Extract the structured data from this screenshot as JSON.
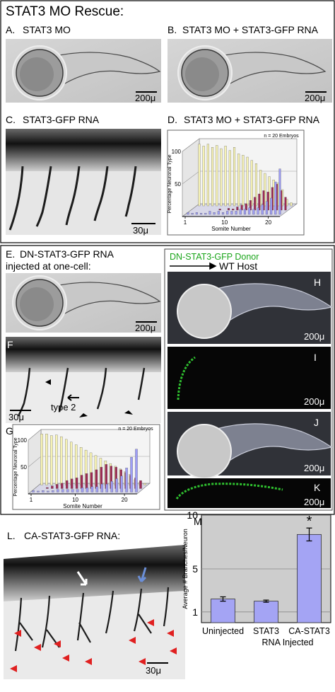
{
  "figure": {
    "rescue_title": "STAT3 MO Rescue:",
    "panel_a": {
      "letter": "A.",
      "title": "STAT3 MO",
      "scale": "200μ"
    },
    "panel_b": {
      "letter": "B.",
      "title": "STAT3 MO + STAT3-GFP RNA",
      "scale": "200μ"
    },
    "panel_c": {
      "letter": "C.",
      "title": "STAT3-GFP RNA",
      "scale": "30μ"
    },
    "panel_d": {
      "letter": "D.",
      "title": "STAT3 MO + STAT3-GFP RNA"
    },
    "panel_e": {
      "letter": "E.",
      "title": "DN-STAT3-GFP RNA",
      "subtitle": "injected at one-cell:",
      "scale": "200μ"
    },
    "panel_f": {
      "letter": "F",
      "scale": "30μ",
      "annotation": "type 2"
    },
    "panel_g": {
      "letter": "G"
    },
    "donor": "DN-STAT3-GFP Donor",
    "host": "WT Host",
    "panel_h": {
      "letter": "H",
      "scale": "200μ"
    },
    "panel_i": {
      "letter": "I",
      "scale": "200μ"
    },
    "panel_j": {
      "letter": "J",
      "scale": "200μ"
    },
    "panel_k": {
      "letter": "K",
      "scale": "200μ"
    },
    "panel_l": {
      "letter": "L.",
      "title": "CA-STAT3-GFP RNA:",
      "scale": "30μ"
    },
    "panel_m": {
      "letter": "M"
    }
  },
  "chart_data": [
    {
      "type": "bar3d",
      "annotation": "n = 20 Embryos",
      "y_label": "Percentage Neuronal Type",
      "x_label": "Somite Number",
      "x": [
        1,
        2,
        3,
        4,
        5,
        6,
        7,
        8,
        9,
        10,
        11,
        12,
        13,
        14,
        15,
        16,
        17,
        18,
        19,
        20,
        21,
        22
      ],
      "xlim": [
        1,
        22
      ],
      "xticks": [
        1,
        10,
        20
      ],
      "ylim": [
        0,
        100
      ],
      "yticks": [
        50,
        100
      ],
      "series": [
        {
          "color": "#f6f2b4",
          "values": [
            95,
            92,
            95,
            90,
            93,
            88,
            92,
            85,
            90,
            80,
            78,
            75,
            70,
            65,
            55,
            50,
            45,
            40,
            35,
            25,
            10,
            5
          ]
        },
        {
          "color": "#9c2a55",
          "values": [
            0,
            0,
            0,
            0,
            0,
            0,
            2,
            0,
            3,
            2,
            5,
            8,
            10,
            15,
            20,
            25,
            30,
            28,
            35,
            40,
            30,
            20
          ]
        },
        {
          "color": "#9d9df5",
          "values": [
            3,
            2,
            3,
            2,
            2,
            5,
            3,
            5,
            3,
            5,
            5,
            5,
            8,
            8,
            10,
            8,
            10,
            15,
            20,
            25,
            50,
            70
          ]
        }
      ]
    },
    {
      "type": "bar3d",
      "annotation": "n = 20 Embryos",
      "y_label": "Percentage Neuronal Type",
      "x_label": "Somite Number",
      "x": [
        1,
        2,
        3,
        4,
        5,
        6,
        7,
        8,
        9,
        10,
        11,
        12,
        13,
        14,
        15,
        16,
        17,
        18,
        19,
        20,
        21,
        22
      ],
      "xlim": [
        1,
        22
      ],
      "xticks": [
        1,
        10,
        20
      ],
      "ylim": [
        0,
        100
      ],
      "yticks": [
        50,
        100
      ],
      "series": [
        {
          "color": "#f6f2b4",
          "values": [
            95,
            95,
            92,
            93,
            90,
            85,
            80,
            75,
            70,
            65,
            60,
            55,
            50,
            45,
            40,
            35,
            30,
            25,
            20,
            10,
            5,
            3
          ]
        },
        {
          "color": "#9c2a55",
          "values": [
            0,
            0,
            2,
            5,
            8,
            10,
            15,
            18,
            20,
            25,
            28,
            30,
            35,
            40,
            45,
            42,
            40,
            35,
            30,
            25,
            20,
            15
          ]
        },
        {
          "color": "#9d9df5",
          "values": [
            3,
            2,
            3,
            2,
            3,
            5,
            5,
            5,
            5,
            5,
            8,
            8,
            10,
            10,
            15,
            15,
            20,
            25,
            30,
            45,
            65,
            80
          ]
        }
      ]
    },
    {
      "type": "bar",
      "y_label": "Average # Branches/Neuron",
      "x_label": "RNA Injected",
      "annotation": "*",
      "categories": [
        "Uninjected",
        "STAT3",
        "CA-STAT3"
      ],
      "values": [
        2.2,
        2.0,
        8.2
      ],
      "errors": [
        0.2,
        0.1,
        0.6
      ],
      "color": "#a4a4f4",
      "ylim": [
        0,
        10
      ],
      "yticks": [
        1,
        5,
        10
      ],
      "grid": true
    }
  ]
}
